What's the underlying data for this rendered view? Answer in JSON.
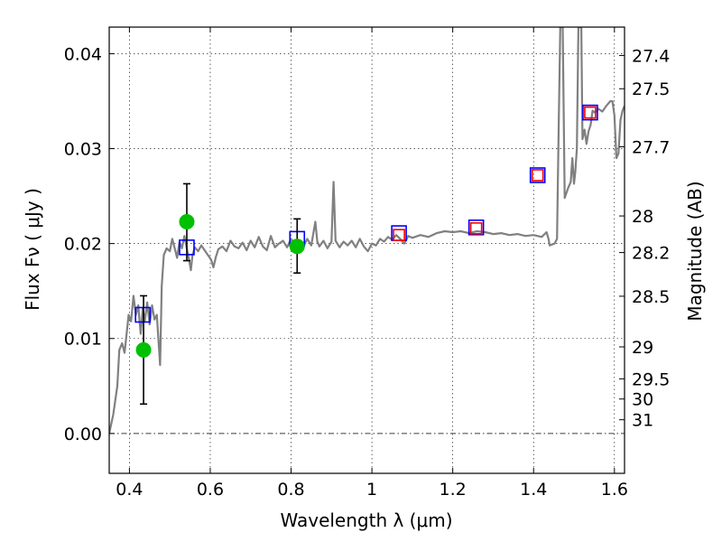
{
  "chart_data": {
    "type": "line",
    "xlabel": "Wavelength  λ (μm)",
    "ylabel": "Flux  Fν  ( μJy )",
    "y2label": "Magnitude (AB)",
    "xlim": [
      0.35,
      1.625
    ],
    "ylim": [
      -0.0042,
      0.0428
    ],
    "grid": true,
    "x_ticks": [
      {
        "v": 0.4,
        "label": "0.4"
      },
      {
        "v": 0.6,
        "label": "0.6"
      },
      {
        "v": 0.8,
        "label": "0.8"
      },
      {
        "v": 1.0,
        "label": "1"
      },
      {
        "v": 1.2,
        "label": "1.2"
      },
      {
        "v": 1.4,
        "label": "1.4"
      },
      {
        "v": 1.6,
        "label": "1.6"
      }
    ],
    "y_ticks": [
      {
        "v": 0.0,
        "label": "0.00"
      },
      {
        "v": 0.01,
        "label": "0.01"
      },
      {
        "v": 0.02,
        "label": "0.02"
      },
      {
        "v": 0.03,
        "label": "0.03"
      },
      {
        "v": 0.04,
        "label": "0.04"
      }
    ],
    "y2_ticks": [
      {
        "v": 27.4,
        "label": "27.4"
      },
      {
        "v": 27.5,
        "label": "27.5"
      },
      {
        "v": 27.7,
        "label": "27.7"
      },
      {
        "v": 28,
        "label": "28"
      },
      {
        "v": 28.2,
        "label": "28.2"
      },
      {
        "v": 28.5,
        "label": "28.5"
      },
      {
        "v": 29,
        "label": "29"
      },
      {
        "v": 29.5,
        "label": "29.5"
      },
      {
        "v": 30,
        "label": "30"
      },
      {
        "v": 31,
        "label": "31"
      }
    ],
    "series": [
      {
        "style": "line",
        "color": "#808080",
        "points": [
          [
            0.35,
            0.0
          ],
          [
            0.36,
            0.002
          ],
          [
            0.37,
            0.005
          ],
          [
            0.375,
            0.0088
          ],
          [
            0.382,
            0.0095
          ],
          [
            0.388,
            0.0085
          ],
          [
            0.393,
            0.0105
          ],
          [
            0.398,
            0.0125
          ],
          [
            0.404,
            0.0118
          ],
          [
            0.41,
            0.0145
          ],
          [
            0.416,
            0.0125
          ],
          [
            0.422,
            0.0135
          ],
          [
            0.428,
            0.0105
          ],
          [
            0.433,
            0.0132
          ],
          [
            0.438,
            0.0118
          ],
          [
            0.444,
            0.0138
          ],
          [
            0.45,
            0.0115
          ],
          [
            0.456,
            0.0135
          ],
          [
            0.462,
            0.012
          ],
          [
            0.468,
            0.0125
          ],
          [
            0.472,
            0.0098
          ],
          [
            0.476,
            0.0072
          ],
          [
            0.48,
            0.0155
          ],
          [
            0.485,
            0.0188
          ],
          [
            0.492,
            0.0195
          ],
          [
            0.5,
            0.0192
          ],
          [
            0.506,
            0.0205
          ],
          [
            0.512,
            0.0195
          ],
          [
            0.518,
            0.0185
          ],
          [
            0.524,
            0.0202
          ],
          [
            0.53,
            0.0195
          ],
          [
            0.536,
            0.0208
          ],
          [
            0.542,
            0.0195
          ],
          [
            0.548,
            0.0182
          ],
          [
            0.552,
            0.0172
          ],
          [
            0.556,
            0.0188
          ],
          [
            0.562,
            0.0196
          ],
          [
            0.57,
            0.0192
          ],
          [
            0.578,
            0.0198
          ],
          [
            0.586,
            0.0193
          ],
          [
            0.594,
            0.0188
          ],
          [
            0.602,
            0.0183
          ],
          [
            0.608,
            0.0175
          ],
          [
            0.614,
            0.0186
          ],
          [
            0.62,
            0.0194
          ],
          [
            0.63,
            0.0197
          ],
          [
            0.64,
            0.0192
          ],
          [
            0.65,
            0.0203
          ],
          [
            0.66,
            0.0197
          ],
          [
            0.67,
            0.0195
          ],
          [
            0.68,
            0.0201
          ],
          [
            0.69,
            0.0193
          ],
          [
            0.7,
            0.0203
          ],
          [
            0.71,
            0.0196
          ],
          [
            0.72,
            0.0207
          ],
          [
            0.73,
            0.0197
          ],
          [
            0.74,
            0.0193
          ],
          [
            0.75,
            0.0208
          ],
          [
            0.76,
            0.0196
          ],
          [
            0.77,
            0.02
          ],
          [
            0.78,
            0.0203
          ],
          [
            0.79,
            0.0196
          ],
          [
            0.8,
            0.0205
          ],
          [
            0.81,
            0.0198
          ],
          [
            0.82,
            0.0202
          ],
          [
            0.83,
            0.0196
          ],
          [
            0.84,
            0.0205
          ],
          [
            0.85,
            0.0198
          ],
          [
            0.86,
            0.0223
          ],
          [
            0.865,
            0.0202
          ],
          [
            0.87,
            0.0197
          ],
          [
            0.88,
            0.0203
          ],
          [
            0.89,
            0.0195
          ],
          [
            0.9,
            0.0202
          ],
          [
            0.905,
            0.0265
          ],
          [
            0.91,
            0.0203
          ],
          [
            0.92,
            0.0196
          ],
          [
            0.93,
            0.0202
          ],
          [
            0.94,
            0.0198
          ],
          [
            0.95,
            0.0203
          ],
          [
            0.96,
            0.0196
          ],
          [
            0.97,
            0.0205
          ],
          [
            0.98,
            0.0197
          ],
          [
            0.99,
            0.0192
          ],
          [
            1.0,
            0.02
          ],
          [
            1.01,
            0.0198
          ],
          [
            1.02,
            0.0205
          ],
          [
            1.03,
            0.0202
          ],
          [
            1.04,
            0.0207
          ],
          [
            1.05,
            0.0204
          ],
          [
            1.06,
            0.0209
          ],
          [
            1.07,
            0.0205
          ],
          [
            1.08,
            0.02
          ],
          [
            1.09,
            0.0208
          ],
          [
            1.1,
            0.0206
          ],
          [
            1.12,
            0.0209
          ],
          [
            1.14,
            0.0207
          ],
          [
            1.16,
            0.0211
          ],
          [
            1.18,
            0.0213
          ],
          [
            1.2,
            0.0212
          ],
          [
            1.22,
            0.0213
          ],
          [
            1.24,
            0.0211
          ],
          [
            1.26,
            0.0213
          ],
          [
            1.28,
            0.0212
          ],
          [
            1.3,
            0.021
          ],
          [
            1.32,
            0.0211
          ],
          [
            1.34,
            0.0209
          ],
          [
            1.36,
            0.021
          ],
          [
            1.38,
            0.0208
          ],
          [
            1.4,
            0.0209
          ],
          [
            1.42,
            0.0207
          ],
          [
            1.432,
            0.0212
          ],
          [
            1.437,
            0.0205
          ],
          [
            1.44,
            0.0198
          ],
          [
            1.452,
            0.02
          ],
          [
            1.458,
            0.0205
          ],
          [
            1.462,
            0.032
          ],
          [
            1.466,
            0.0428
          ],
          [
            1.472,
            0.0428
          ],
          [
            1.477,
            0.0248
          ],
          [
            1.485,
            0.0258
          ],
          [
            1.492,
            0.0265
          ],
          [
            1.496,
            0.029
          ],
          [
            1.5,
            0.0263
          ],
          [
            1.503,
            0.0275
          ],
          [
            1.507,
            0.03
          ],
          [
            1.511,
            0.0428
          ],
          [
            1.518,
            0.0428
          ],
          [
            1.521,
            0.031
          ],
          [
            1.526,
            0.032
          ],
          [
            1.531,
            0.0305
          ],
          [
            1.536,
            0.0318
          ],
          [
            1.541,
            0.0325
          ],
          [
            1.546,
            0.034
          ],
          [
            1.552,
            0.0338
          ],
          [
            1.56,
            0.0342
          ],
          [
            1.57,
            0.0339
          ],
          [
            1.58,
            0.0345
          ],
          [
            1.59,
            0.035
          ],
          [
            1.595,
            0.035
          ],
          [
            1.6,
            0.0335
          ],
          [
            1.605,
            0.029
          ],
          [
            1.61,
            0.0295
          ],
          [
            1.615,
            0.033
          ],
          [
            1.62,
            0.034
          ],
          [
            1.625,
            0.0345
          ]
        ]
      },
      {
        "style": "marker-square",
        "color": "#0000ff",
        "points": [
          [
            0.433,
            0.0125
          ],
          [
            0.542,
            0.0196
          ],
          [
            0.815,
            0.0205
          ],
          [
            1.067,
            0.0211
          ],
          [
            1.258,
            0.0217
          ],
          [
            1.41,
            0.0272
          ],
          [
            1.54,
            0.0338
          ]
        ]
      },
      {
        "style": "marker-square",
        "color": "#ff0000",
        "points": [
          [
            1.067,
            0.0209
          ],
          [
            1.258,
            0.0216
          ],
          [
            1.41,
            0.0272
          ],
          [
            1.54,
            0.0338
          ]
        ]
      },
      {
        "style": "marker-circle",
        "color": "#00c000",
        "points": [
          {
            "x": 0.435,
            "y": 0.0088,
            "yerr_low": 0.0031,
            "yerr_high": 0.0145
          },
          {
            "x": 0.542,
            "y": 0.0223,
            "yerr_low": 0.0182,
            "yerr_high": 0.0263
          },
          {
            "x": 0.815,
            "y": 0.0197,
            "yerr_low": 0.0169,
            "yerr_high": 0.0226
          }
        ]
      }
    ]
  }
}
